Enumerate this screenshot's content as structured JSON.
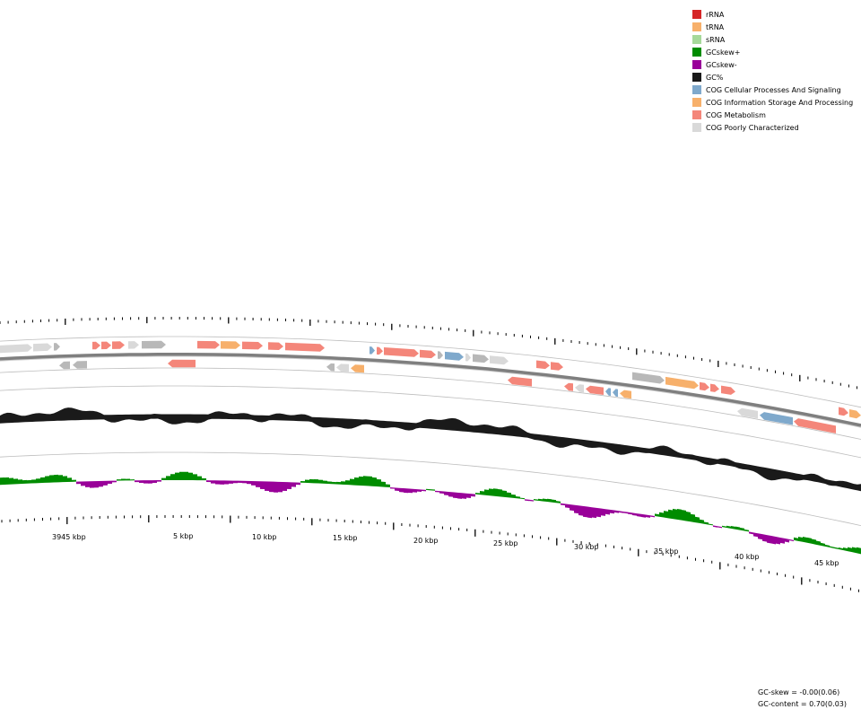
{
  "legend": {
    "items": [
      {
        "label": "rRNA",
        "color": "#d62728"
      },
      {
        "label": "tRNA",
        "color": "#f7b06b"
      },
      {
        "label": "sRNA",
        "color": "#a6d99a"
      },
      {
        "label": "GCskew+",
        "color": "#008c00"
      },
      {
        "label": "GCskew-",
        "color": "#990099"
      },
      {
        "label": "GC%",
        "color": "#1a1a1a"
      },
      {
        "label": "COG Cellular Processes And Signaling",
        "color": "#7fa9cc"
      },
      {
        "label": "COG Information Storage And Processing",
        "color": "#f7b06b"
      },
      {
        "label": "COG Metabolism",
        "color": "#f4867a"
      },
      {
        "label": "COG Poorly Characterized",
        "color": "#d9d9d9"
      }
    ]
  },
  "axis": {
    "tick_labels": [
      "3945 kbp",
      "5 kbp",
      "10 kbp",
      "15 kbp",
      "20 kbp",
      "25 kbp",
      "30 kbp",
      "35 kbp",
      "40 kbp",
      "45 kbp"
    ]
  },
  "stats": {
    "gc_skew": "GC-skew = -0.00(0.06)",
    "gc_content": "GC-content = 0.70(0.03)"
  },
  "colors": {
    "gc": "#1a1a1a",
    "skew_pos": "#008c00",
    "skew_neg": "#990099",
    "backbone": "#7f7f7f",
    "track_line": "#bdbdbd",
    "unassigned_gene": "#b8b8b8"
  }
}
